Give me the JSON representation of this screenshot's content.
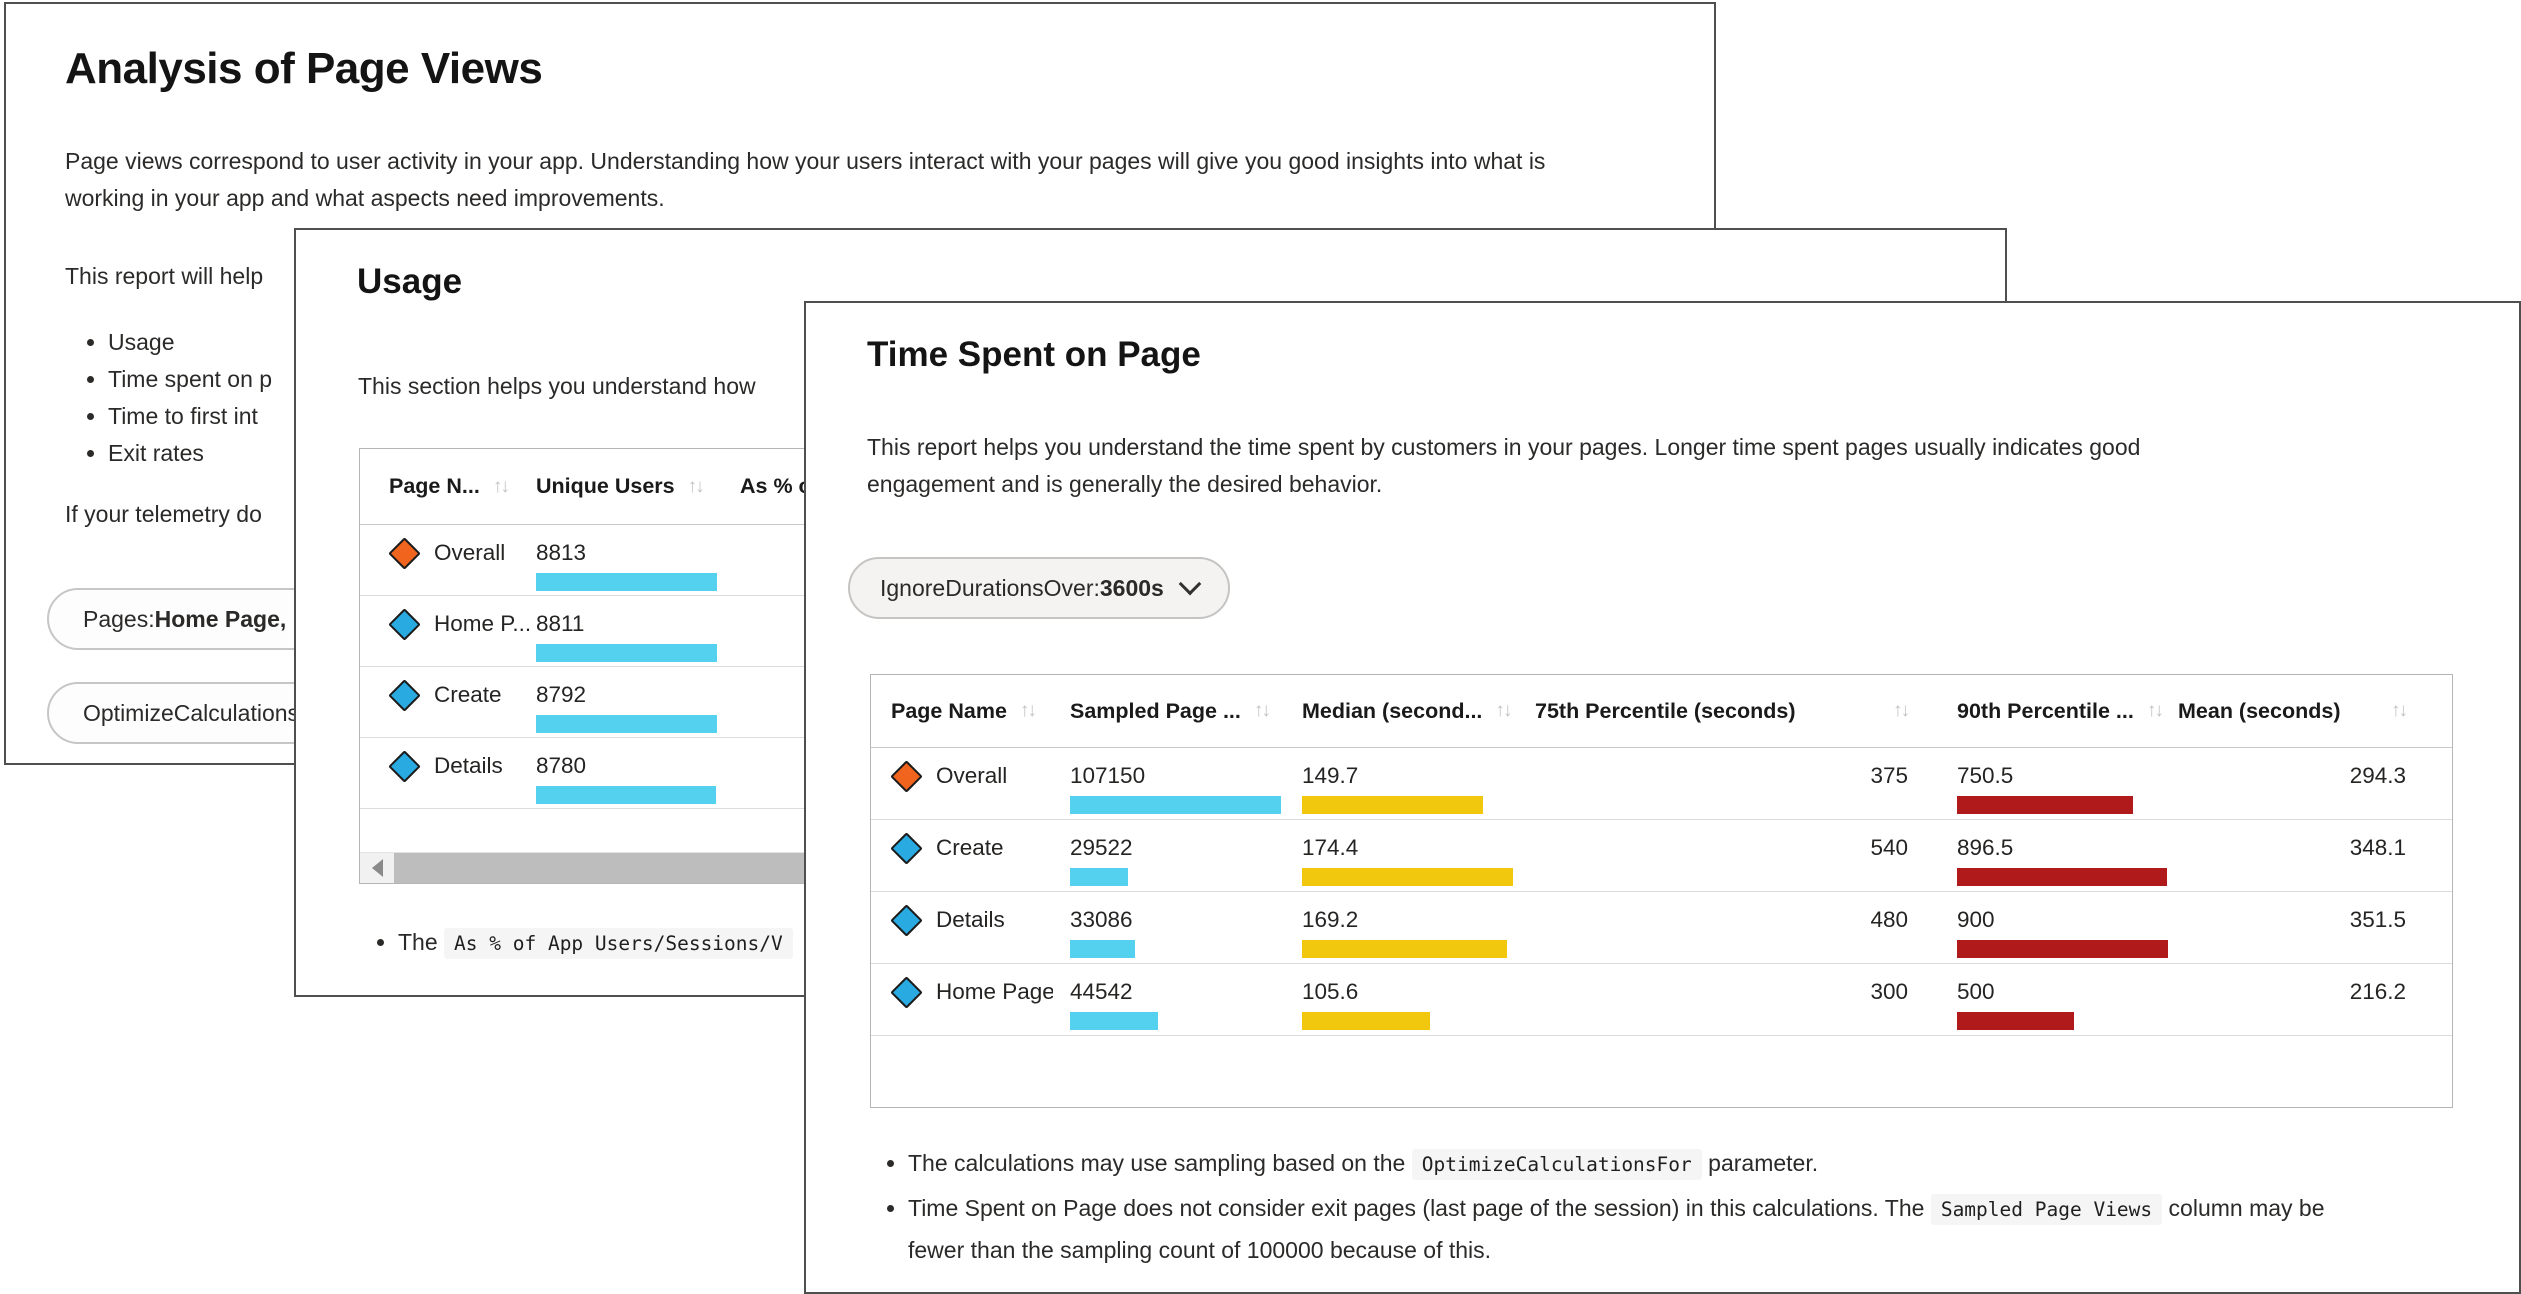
{
  "colors": {
    "bar_cyan": "#55D1F0",
    "bar_yellow": "#F2C80F",
    "bar_red": "#B01A1A",
    "marker_orange": "#F0641E",
    "marker_blue": "#29ABE2"
  },
  "page_views_card": {
    "title": "Analysis of Page Views",
    "intro": "Page views correspond to user activity in your app. Understanding how your users interact with your pages will give you good insights into what is working in your app and what aspects need improvements.",
    "report_help_text": "This report will help",
    "bullets": [
      "Usage",
      "Time spent on p",
      "Time to first int",
      "Exit rates"
    ],
    "telemetry_text": "If your telemetry do",
    "pills": [
      {
        "prefix": "Pages: ",
        "value": "Home Page, D"
      },
      {
        "prefix": "OptimizeCalculations",
        "value": ""
      }
    ]
  },
  "usage_card": {
    "title": "Usage",
    "intro": "This section helps you understand how",
    "table": {
      "columns": [
        "Page N...",
        "Unique Users",
        "As % of"
      ],
      "rows": [
        {
          "name": "Overall",
          "marker": "orange",
          "unique_users": 8813
        },
        {
          "name": "Home P...",
          "marker": "blue",
          "unique_users": 8811
        },
        {
          "name": "Create",
          "marker": "blue",
          "unique_users": 8792
        },
        {
          "name": "Details",
          "marker": "blue",
          "unique_users": 8780
        }
      ]
    },
    "footnote_segments": [
      {
        "text": "The "
      },
      {
        "code": "As % of App Users/Sessions/V"
      }
    ]
  },
  "time_spent_card": {
    "title": "Time Spent on Page",
    "intro": "This report helps you understand the time spent by customers in your pages. Longer time spent pages usually indicates good engagement and is generally the desired behavior.",
    "filter_pill": {
      "label": "IgnoreDurationsOver: ",
      "value": "3600s"
    },
    "table": {
      "columns": {
        "page_name": "Page Name",
        "sampled": "Sampled Page ...",
        "median": "Median (second...",
        "p75": "75th Percentile (seconds)",
        "p90": "90th Percentile ...",
        "mean": "Mean (seconds)"
      },
      "rows": [
        {
          "name": "Overall",
          "marker": "orange",
          "sampled": 107150,
          "median": 149.7,
          "p75": 375,
          "p90": 750.5,
          "mean": 294.3
        },
        {
          "name": "Create",
          "marker": "blue",
          "sampled": 29522,
          "median": 174.4,
          "p75": 540,
          "p90": 896.5,
          "mean": 348.1
        },
        {
          "name": "Details",
          "marker": "blue",
          "sampled": 33086,
          "median": 169.2,
          "p75": 480,
          "p90": 900,
          "mean": 351.5
        },
        {
          "name": "Home Page",
          "marker": "blue",
          "sampled": 44542,
          "median": 105.6,
          "p75": 300,
          "p90": 500,
          "mean": 216.2
        }
      ]
    },
    "footnotes": [
      {
        "segments": [
          {
            "text": "The calculations may use sampling based on the "
          },
          {
            "code": "OptimizeCalculationsFor"
          },
          {
            "text": " parameter."
          }
        ]
      },
      {
        "segments": [
          {
            "text": "Time Spent on Page does not consider exit pages (last page of the session) in this calculations. The "
          },
          {
            "code": "Sampled Page Views"
          },
          {
            "text": " column may be fewer than the sampling count of 100000 because of this."
          }
        ]
      }
    ],
    "sort_icon": "↑↓"
  }
}
